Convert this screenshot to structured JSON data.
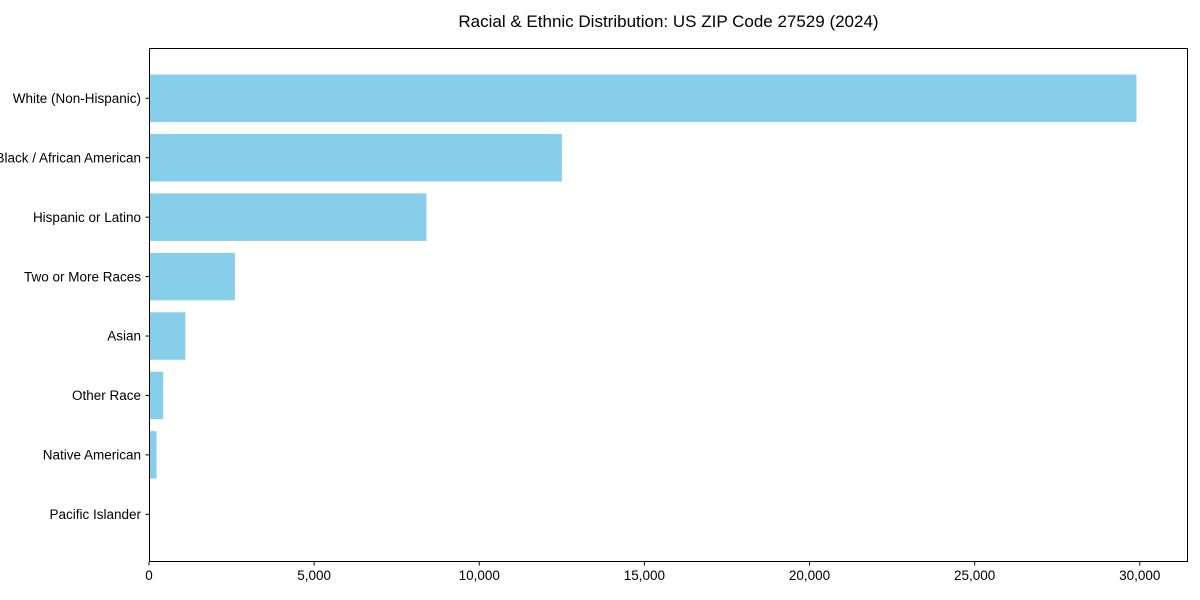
{
  "figure": {
    "background": "#ffffff"
  },
  "chart_data": {
    "type": "bar",
    "orientation": "horizontal",
    "title": "Racial & Ethnic Distribution: US ZIP Code 27529 (2024)",
    "categories": [
      "White (Non-Hispanic)",
      "Black / African American",
      "Hispanic or Latino",
      "Two or More Races",
      "Asian",
      "Other Race",
      "Native American",
      "Pacific Islander"
    ],
    "values": [
      29900,
      12500,
      8400,
      2600,
      1100,
      430,
      230,
      20
    ],
    "xlabel": "",
    "ylabel": "",
    "xlim": [
      0,
      31460
    ],
    "xticks": [
      0,
      5000,
      10000,
      15000,
      20000,
      25000,
      30000
    ],
    "xtick_labels": [
      "0",
      "5,000",
      "10,000",
      "15,000",
      "20,000",
      "25,000",
      "30,000"
    ],
    "bar_color": "#87CEEB",
    "axis_color": "#000000",
    "text_color": "#000000",
    "grid": false,
    "legend": "none"
  }
}
